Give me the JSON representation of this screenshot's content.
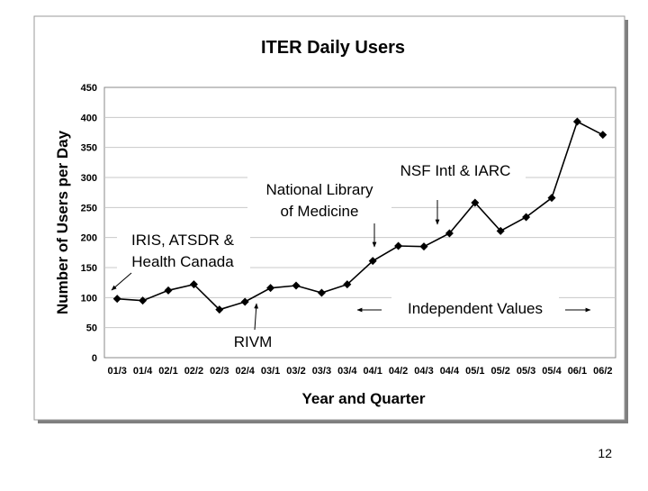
{
  "page_number": "12",
  "chart_data": {
    "type": "line",
    "title": "ITER Daily Users",
    "xlabel": "Year and Quarter",
    "ylabel": "Number of Users per Day",
    "ylim": [
      0,
      450
    ],
    "yticks": [
      0,
      50,
      100,
      150,
      200,
      250,
      300,
      350,
      400,
      450
    ],
    "grid": true,
    "categories": [
      "01/3",
      "01/4",
      "02/1",
      "02/2",
      "02/3",
      "02/4",
      "03/1",
      "03/2",
      "03/3",
      "03/4",
      "04/1",
      "04/2",
      "04/3",
      "04/4",
      "05/1",
      "05/2",
      "05/3",
      "05/4",
      "06/1",
      "06/2"
    ],
    "series": [
      {
        "values": [
          98,
          95,
          112,
          122,
          80,
          93,
          116,
          120,
          108,
          122,
          161,
          186,
          185,
          207,
          258,
          211,
          234,
          266,
          393,
          371
        ]
      }
    ],
    "annotations": [
      {
        "id": "iris",
        "lines": [
          "IRIS, ATSDR &",
          "Health Canada"
        ]
      },
      {
        "id": "rivm",
        "lines": [
          "RIVM"
        ]
      },
      {
        "id": "nlm",
        "lines": [
          "National Library",
          "of Medicine"
        ]
      },
      {
        "id": "nsf",
        "lines": [
          "NSF Intl & IARC"
        ]
      },
      {
        "id": "indep",
        "lines": [
          "Independent Values"
        ]
      }
    ]
  }
}
